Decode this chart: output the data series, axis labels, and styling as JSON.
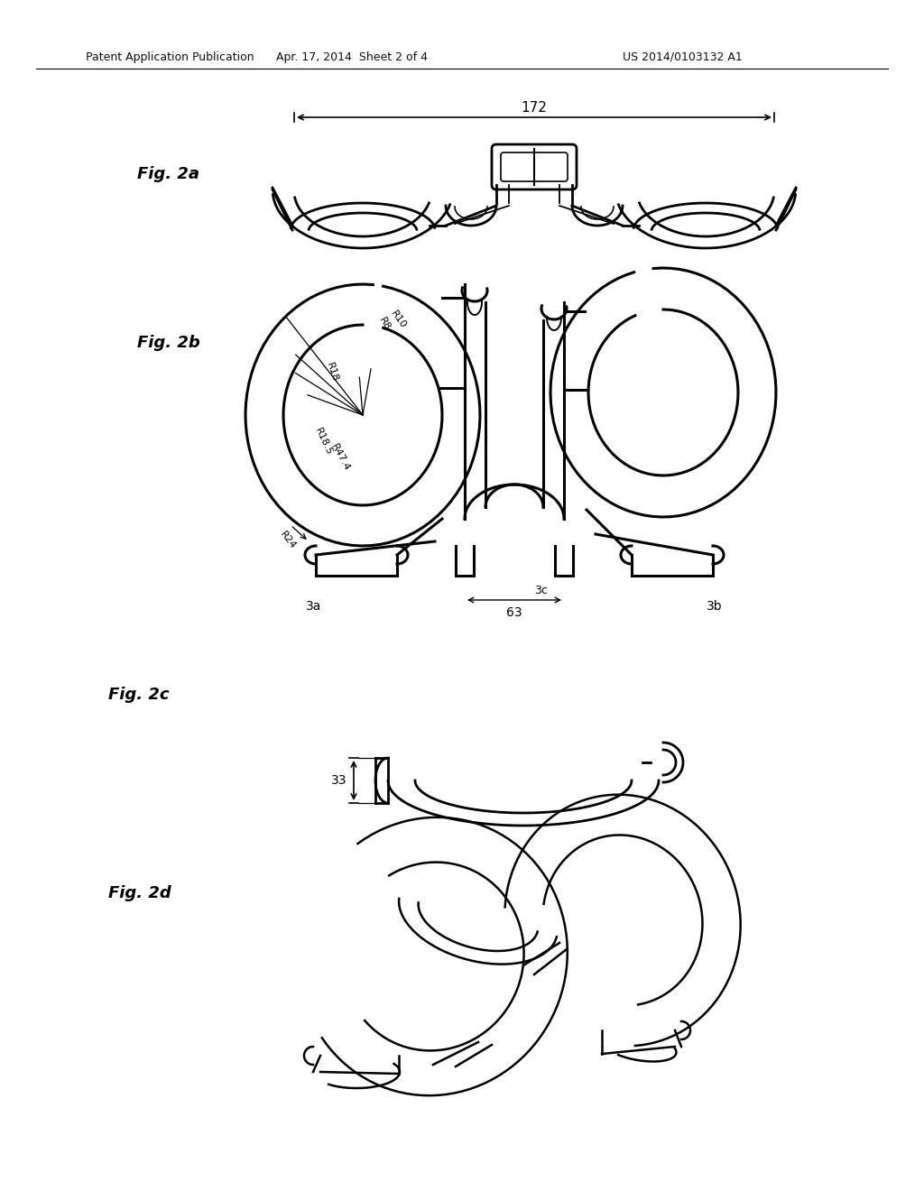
{
  "bg_color": "#ffffff",
  "header_left": "Patent Application Publication",
  "header_center": "Apr. 17, 2014  Sheet 2 of 4",
  "header_right": "US 2014/0103132 A1",
  "dim_172": "172",
  "dim_63": "63",
  "dim_33": "33",
  "fig2a_label": "Fig. 2a",
  "fig2b_label": "Fig. 2b",
  "fig2c_label": "Fig. 2c",
  "fig2d_label": "Fig. 2d",
  "r_labels": [
    "R8",
    "R10",
    "R18",
    "R18.5",
    "R47.4",
    "R24"
  ],
  "part_3a": "3a",
  "part_3b": "3b",
  "part_3c": "3c"
}
